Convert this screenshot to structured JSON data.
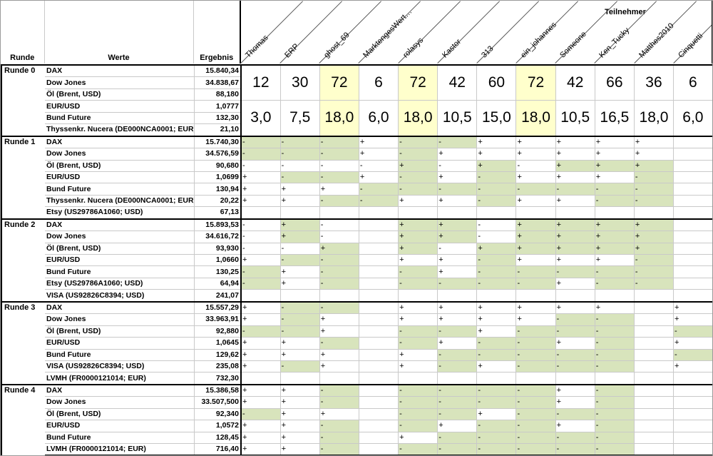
{
  "header": {
    "runde": "Runde",
    "werte": "Werte",
    "ergebnis": "Ergebnis",
    "teilnehmer": "Teilnehmer",
    "participants": [
      "Thomas",
      "ERP",
      "ghost_69",
      "MarktengesWert…",
      "rolasys",
      "Kastor",
      "313",
      "ein_johannes",
      "Someone",
      "Ken_Tucky",
      "Matthes2010",
      "Cinquetti"
    ]
  },
  "colors": {
    "green": "#d8e4bc",
    "yellow": "#ffffcc"
  },
  "round0": {
    "label": "Runde 0",
    "rows": [
      {
        "name": "DAX",
        "value": "15.840,34"
      },
      {
        "name": "Dow Jones",
        "value": "34.838,67"
      },
      {
        "name": "Öl (Brent, USD)",
        "value": "88,180"
      },
      {
        "name": "EUR/USD",
        "value": "1,0777"
      },
      {
        "name": "Bund Future",
        "value": "132,30"
      },
      {
        "name": "Thyssenkr. Nucera (DE000NCA0001; EUR)",
        "value": "21,10"
      }
    ],
    "points": [
      "12",
      "30",
      "72",
      "6",
      "72",
      "42",
      "60",
      "72",
      "42",
      "66",
      "36",
      "6"
    ],
    "scores": [
      "3,0",
      "7,5",
      "18,0",
      "6,0",
      "18,0",
      "10,5",
      "15,0",
      "18,0",
      "10,5",
      "16,5",
      "18,0",
      "6,0"
    ],
    "highlight": [
      2,
      4,
      7
    ]
  },
  "rounds": [
    {
      "label": "Runde 1",
      "rows": [
        {
          "name": "DAX",
          "value": "15.740,30",
          "cells": [
            "-g",
            "-g",
            "-g",
            "+",
            "-g",
            "-g",
            "+",
            "+",
            "+",
            "+",
            "+",
            ""
          ]
        },
        {
          "name": "Dow Jones",
          "value": "34.576,59",
          "cells": [
            "-g",
            "-g",
            "-g",
            "+",
            "-g",
            "+",
            "+",
            "+",
            "+",
            "+",
            "+",
            ""
          ]
        },
        {
          "name": "Öl (Brent, USD)",
          "value": "90,680",
          "cells": [
            "-",
            "-",
            "-",
            "-",
            "+g",
            "-",
            "+g",
            "-",
            "+g",
            "+g",
            "+g",
            ""
          ]
        },
        {
          "name": "EUR/USD",
          "value": "1,0699",
          "cells": [
            "+",
            "-g",
            "-g",
            "+",
            "-g",
            "+",
            "-g",
            "+",
            "+",
            "+",
            "-g",
            ""
          ]
        },
        {
          "name": "Bund Future",
          "value": "130,94",
          "cells": [
            "+",
            "+",
            "+",
            "-g",
            "-g",
            "-g",
            "-g",
            "-g",
            "-g",
            "-g",
            "-g",
            ""
          ]
        },
        {
          "name": "Thyssenkr. Nucera (DE000NCA0001; EUR)",
          "value": "20,22",
          "cells": [
            "+",
            "+",
            "-g",
            "-g",
            "+",
            "+",
            "-g",
            "+",
            "+",
            "-g",
            "-g",
            ""
          ]
        },
        {
          "name": "Etsy (US29786A1060; USD)",
          "value": "67,13",
          "cells": [
            "",
            "",
            "",
            "",
            "",
            "",
            "",
            "",
            "",
            "",
            "",
            ""
          ]
        }
      ]
    },
    {
      "label": "Runde 2",
      "rows": [
        {
          "name": "DAX",
          "value": "15.893,53",
          "cells": [
            "-",
            "+g",
            "-",
            "",
            "+g",
            "+g",
            "-",
            "+g",
            "+g",
            "+g",
            "+g",
            ""
          ]
        },
        {
          "name": "Dow Jones",
          "value": "34.616,72",
          "cells": [
            "-",
            "+g",
            "-",
            "",
            "+g",
            "+g",
            "-",
            "+g",
            "+g",
            "+g",
            "+g",
            ""
          ]
        },
        {
          "name": "Öl (Brent, USD)",
          "value": "93,930",
          "cells": [
            "-",
            "-",
            "+g",
            "",
            "+g",
            "-",
            "+g",
            "+g",
            "+g",
            "+g",
            "+g",
            ""
          ]
        },
        {
          "name": "EUR/USD",
          "value": "1,0660",
          "cells": [
            "+",
            "-g",
            "-g",
            "",
            "+",
            "+",
            "-g",
            "+",
            "+",
            "+",
            "-g",
            ""
          ]
        },
        {
          "name": "Bund Future",
          "value": "130,25",
          "cells": [
            "-g",
            "+",
            "-g",
            "",
            "-g",
            "+",
            "-g",
            "-g",
            "-g",
            "-g",
            "-g",
            ""
          ]
        },
        {
          "name": "Etsy (US29786A1060; USD)",
          "value": "64,94",
          "cells": [
            "-g",
            "+",
            "-g",
            "",
            "-g",
            "-g",
            "-g",
            "-g",
            "+",
            "-g",
            "-g",
            ""
          ]
        },
        {
          "name": "VISA (US92826C8394; USD)",
          "value": "241,07",
          "cells": [
            "",
            "",
            "",
            "",
            "",
            "",
            "",
            "",
            "",
            "",
            "",
            ""
          ]
        }
      ]
    },
    {
      "label": "Runde 3",
      "rows": [
        {
          "name": "DAX",
          "value": "15.557,29",
          "cells": [
            "+",
            "-g",
            "-g",
            "",
            "+",
            "+",
            "+",
            "+",
            "+",
            "+",
            "",
            "+"
          ]
        },
        {
          "name": "Dow Jones",
          "value": "33.963,91",
          "cells": [
            "+",
            "-g",
            "+",
            "",
            "+",
            "+",
            "+",
            "+",
            "-g",
            "-g",
            "",
            "+"
          ]
        },
        {
          "name": "Öl (Brent, USD)",
          "value": "92,880",
          "cells": [
            "-g",
            "-g",
            "+",
            "",
            "-g",
            "-g",
            "+",
            "-g",
            "-g",
            "-g",
            "",
            "-g"
          ]
        },
        {
          "name": "EUR/USD",
          "value": "1,0645",
          "cells": [
            "+",
            "+",
            "-g",
            "",
            "-g",
            "+",
            "-g",
            "-g",
            "+",
            "-g",
            "",
            "+"
          ]
        },
        {
          "name": "Bund Future",
          "value": "129,62",
          "cells": [
            "+",
            "+",
            "+",
            "",
            "+",
            "-g",
            "-g",
            "-g",
            "-g",
            "-g",
            "",
            "-g"
          ]
        },
        {
          "name": "VISA (US92826C8394; USD)",
          "value": "235,08",
          "cells": [
            "+",
            "-g",
            "+",
            "",
            "+",
            "-g",
            "+",
            "-g",
            "-g",
            "-g",
            "",
            "+"
          ]
        },
        {
          "name": "LVMH (FR0000121014; EUR)",
          "value": "732,30",
          "cells": [
            "",
            "",
            "",
            "",
            "",
            "",
            "",
            "",
            "",
            "",
            "",
            ""
          ]
        }
      ]
    },
    {
      "label": "Runde 4",
      "rows": [
        {
          "name": "DAX",
          "value": "15.386,58",
          "cells": [
            "+",
            "+",
            "-g",
            "",
            "-g",
            "-g",
            "-g",
            "-g",
            "+",
            "-g",
            "",
            ""
          ]
        },
        {
          "name": "Dow Jones",
          "value": "33.507,500",
          "cells": [
            "+",
            "+",
            "-g",
            "",
            "-g",
            "-g",
            "-g",
            "-g",
            "+",
            "-g",
            "",
            ""
          ]
        },
        {
          "name": "Öl (Brent, USD)",
          "value": "92,340",
          "cells": [
            "-g",
            "+",
            "+",
            "",
            "-g",
            "-g",
            "+",
            "-g",
            "-g",
            "-g",
            "",
            ""
          ]
        },
        {
          "name": "EUR/USD",
          "value": "1,0572",
          "cells": [
            "+",
            "+",
            "-g",
            "",
            "-g",
            "+",
            "-g",
            "-g",
            "+",
            "-g",
            "",
            ""
          ]
        },
        {
          "name": "Bund Future",
          "value": "128,45",
          "cells": [
            "+",
            "+",
            "-g",
            "",
            "+",
            "-g",
            "-g",
            "-g",
            "-g",
            "-g",
            "",
            ""
          ]
        },
        {
          "name": "LVMH (FR0000121014; EUR)",
          "value": "716,40",
          "cells": [
            "+",
            "+",
            "-g",
            "",
            "-g",
            "-g",
            "-g",
            "-g",
            "-g",
            "-g",
            "",
            ""
          ]
        }
      ]
    }
  ]
}
